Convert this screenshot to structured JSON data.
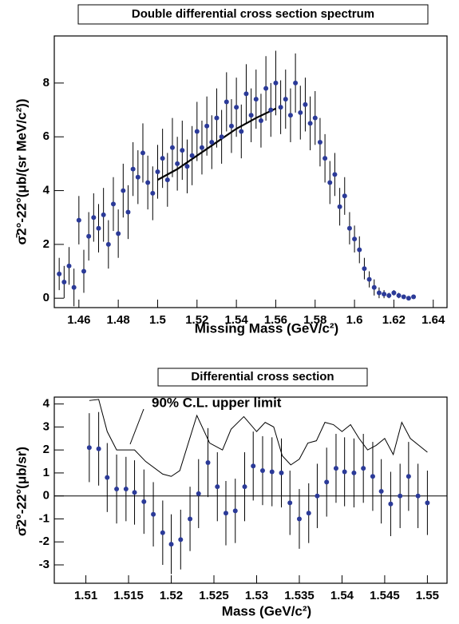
{
  "chart_data": [
    {
      "type": "scatter",
      "title": "Double differential cross section spectrum",
      "xlabel": "Missing Mass (GeV/c²)",
      "ylabel": "σ̄2°-22°(μb/(sr MeV/c²))",
      "xlim": [
        1.4475,
        1.647
      ],
      "ylim": [
        -0.35,
        9.75
      ],
      "xticks": [
        1.46,
        1.48,
        1.5,
        1.52,
        1.54,
        1.56,
        1.58,
        1.6,
        1.62,
        1.64
      ],
      "yticks": [
        0,
        2,
        4,
        6,
        8
      ],
      "points": {
        "color": "#2b3a98",
        "x": [
          1.45,
          1.4525,
          1.455,
          1.4575,
          1.46,
          1.4625,
          1.465,
          1.4675,
          1.47,
          1.4725,
          1.475,
          1.4775,
          1.48,
          1.4825,
          1.485,
          1.4875,
          1.49,
          1.4925,
          1.495,
          1.4975,
          1.5,
          1.5025,
          1.505,
          1.5075,
          1.51,
          1.5125,
          1.515,
          1.5175,
          1.52,
          1.5225,
          1.525,
          1.5275,
          1.53,
          1.5325,
          1.535,
          1.5375,
          1.54,
          1.5425,
          1.545,
          1.5475,
          1.55,
          1.5525,
          1.555,
          1.5575,
          1.56,
          1.5625,
          1.565,
          1.5675,
          1.57,
          1.5725,
          1.575,
          1.5775,
          1.58,
          1.5825,
          1.585,
          1.5875,
          1.59,
          1.5925,
          1.595,
          1.5975,
          1.6,
          1.6025,
          1.605,
          1.6075,
          1.61,
          1.6125,
          1.615,
          1.6175,
          1.62,
          1.6225,
          1.625,
          1.6275,
          1.63
        ],
        "values": [
          0.9,
          0.6,
          1.2,
          0.4,
          2.9,
          1.0,
          2.3,
          3.0,
          2.6,
          3.1,
          2.0,
          3.5,
          2.4,
          4.0,
          3.2,
          4.8,
          4.5,
          5.4,
          4.3,
          3.9,
          4.7,
          5.2,
          4.4,
          5.6,
          5.0,
          5.5,
          4.9,
          5.3,
          6.2,
          5.6,
          6.4,
          5.8,
          6.7,
          6.0,
          7.3,
          6.4,
          7.1,
          6.2,
          7.6,
          6.8,
          7.4,
          6.6,
          7.8,
          7.0,
          8.0,
          7.1,
          7.4,
          6.8,
          8.0,
          6.9,
          7.2,
          6.5,
          6.7,
          5.8,
          5.2,
          4.3,
          4.6,
          3.4,
          3.8,
          2.6,
          2.2,
          1.8,
          1.1,
          0.7,
          0.4,
          0.2,
          0.15,
          0.1,
          0.2,
          0.1,
          0.05,
          0.0,
          0.05
        ],
        "errors": [
          0.6,
          0.6,
          0.7,
          0.7,
          0.9,
          0.8,
          0.9,
          0.9,
          0.9,
          1.0,
          0.9,
          1.0,
          0.9,
          1.0,
          1.0,
          1.0,
          1.0,
          1.1,
          1.0,
          1.0,
          1.0,
          1.1,
          1.0,
          1.1,
          1.0,
          1.1,
          1.0,
          1.1,
          1.1,
          1.0,
          1.1,
          1.0,
          1.1,
          1.0,
          1.1,
          1.0,
          1.1,
          1.0,
          1.1,
          1.0,
          1.1,
          1.0,
          1.2,
          1.0,
          1.2,
          1.0,
          1.1,
          1.0,
          1.1,
          1.0,
          1.0,
          1.0,
          1.0,
          0.9,
          0.9,
          0.8,
          0.8,
          0.7,
          0.7,
          0.6,
          0.5,
          0.5,
          0.4,
          0.3,
          0.3,
          0.2,
          0.15,
          0.1,
          0.1,
          0.1,
          0.05,
          0.05,
          0.05
        ]
      },
      "line": {
        "color": "#000000",
        "x": [
          1.5,
          1.51,
          1.52,
          1.53,
          1.54,
          1.55,
          1.56
        ],
        "values": [
          4.4,
          4.8,
          5.3,
          5.8,
          6.3,
          6.7,
          7.05
        ]
      }
    },
    {
      "type": "scatter",
      "title": "Differential cross section",
      "xlabel": "Mass (GeV/c²)",
      "ylabel": "σ̄2°-22°(μb/sr)",
      "annotation": "90% C.L. upper limit",
      "xlim": [
        1.5063,
        1.5523
      ],
      "ylim": [
        -3.8,
        4.3
      ],
      "xticks": [
        1.51,
        1.515,
        1.52,
        1.525,
        1.53,
        1.535,
        1.54,
        1.545,
        1.55
      ],
      "yticks": [
        -3,
        -2,
        -1,
        0,
        1,
        2,
        3,
        4
      ],
      "points": {
        "color": "#2b3a98",
        "x": [
          1.5104,
          1.5115,
          1.5125,
          1.5136,
          1.5147,
          1.5157,
          1.5168,
          1.5179,
          1.519,
          1.52,
          1.5211,
          1.5222,
          1.5232,
          1.5243,
          1.5254,
          1.5264,
          1.5275,
          1.5286,
          1.5296,
          1.5307,
          1.5318,
          1.5329,
          1.5339,
          1.535,
          1.5361,
          1.5371,
          1.5382,
          1.5393,
          1.5403,
          1.5414,
          1.5425,
          1.5436,
          1.5446,
          1.5457,
          1.5468,
          1.5478,
          1.5489,
          1.55
        ],
        "values": [
          2.1,
          2.05,
          0.8,
          0.3,
          0.3,
          0.15,
          -0.25,
          -0.8,
          -1.6,
          -2.1,
          -1.9,
          -1.0,
          0.1,
          1.45,
          0.4,
          -0.75,
          -0.65,
          0.4,
          1.3,
          1.1,
          1.05,
          1.0,
          -0.3,
          -1.0,
          -0.75,
          0.0,
          0.6,
          1.2,
          1.05,
          1.0,
          1.2,
          0.85,
          0.2,
          -0.35,
          0.0,
          0.85,
          0.0,
          -0.3
        ],
        "errors": [
          1.5,
          1.6,
          1.5,
          1.5,
          1.4,
          1.4,
          1.4,
          1.4,
          1.4,
          1.3,
          1.3,
          1.4,
          1.5,
          1.5,
          1.5,
          1.4,
          1.4,
          1.5,
          1.5,
          1.5,
          1.5,
          1.5,
          1.4,
          1.3,
          1.3,
          1.4,
          1.5,
          1.5,
          1.5,
          1.5,
          1.5,
          1.5,
          1.4,
          1.4,
          1.4,
          1.5,
          1.4,
          1.4
        ]
      },
      "line": {
        "color": "#000000",
        "x": [
          1.5104,
          1.5115,
          1.5125,
          1.5136,
          1.5147,
          1.5157,
          1.517,
          1.519,
          1.52,
          1.521,
          1.523,
          1.5245,
          1.526,
          1.527,
          1.5285,
          1.53,
          1.531,
          1.532,
          1.533,
          1.534,
          1.535,
          1.536,
          1.537,
          1.538,
          1.539,
          1.54,
          1.541,
          1.542,
          1.543,
          1.544,
          1.545,
          1.546,
          1.547,
          1.548,
          1.549,
          1.55
        ],
        "values": [
          4.15,
          4.2,
          2.8,
          2.0,
          2.0,
          2.0,
          1.5,
          0.95,
          0.85,
          1.1,
          3.5,
          2.3,
          2.0,
          2.9,
          3.45,
          2.8,
          3.2,
          3.0,
          1.75,
          1.35,
          1.6,
          2.3,
          2.4,
          3.2,
          3.1,
          2.8,
          3.1,
          2.5,
          2.0,
          2.2,
          2.5,
          1.8,
          3.2,
          2.5,
          2.2,
          1.9
        ]
      }
    }
  ]
}
